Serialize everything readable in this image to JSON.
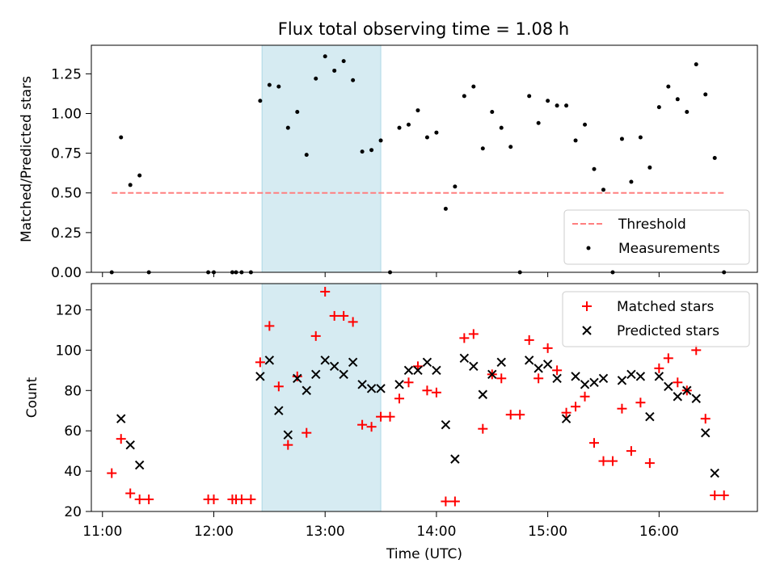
{
  "colors": {
    "threshold": "#ff7f7f",
    "measurement": "#000000",
    "matched": "#ff0000",
    "predicted": "#000000",
    "span": "#add8e6"
  },
  "chart_data": [
    {
      "type": "scatter",
      "title": "Flux total observing time = 1.08 h",
      "xlabel": "",
      "ylabel": "Matched/Predicted stars",
      "xlim": [
        "10:54",
        "16:53"
      ],
      "ylim": [
        0,
        1.43
      ],
      "yticks": [
        "0.00",
        "0.25",
        "0.50",
        "0.75",
        "1.00",
        "1.25"
      ],
      "grid": false,
      "legend_position": "lower-right",
      "highlight_span": [
        "12:26",
        "13:30"
      ],
      "threshold": {
        "name": "Threshold",
        "y": 0.5,
        "x": [
          "11:05",
          "16:35"
        ]
      },
      "series": [
        {
          "name": "Measurements",
          "x": [
            "11:05",
            "11:10",
            "11:15",
            "11:20",
            "11:25",
            "11:57",
            "12:00",
            "12:10",
            "12:12",
            "12:15",
            "12:20",
            "12:25",
            "12:30",
            "12:35",
            "12:40",
            "12:45",
            "12:50",
            "12:55",
            "13:00",
            "13:05",
            "13:10",
            "13:15",
            "13:20",
            "13:25",
            "13:30",
            "13:35",
            "13:40",
            "13:45",
            "13:50",
            "13:55",
            "14:00",
            "14:05",
            "14:10",
            "14:15",
            "14:20",
            "14:25",
            "14:30",
            "14:35",
            "14:40",
            "14:45",
            "14:50",
            "14:55",
            "15:00",
            "15:05",
            "15:10",
            "15:15",
            "15:20",
            "15:25",
            "15:30",
            "15:35",
            "15:40",
            "15:45",
            "15:50",
            "15:55",
            "16:00",
            "16:05",
            "16:10",
            "16:15",
            "16:20",
            "16:25",
            "16:30",
            "16:35"
          ],
          "y": [
            0.0,
            0.85,
            0.55,
            0.61,
            0.0,
            0.0,
            0.0,
            0.0,
            0.0,
            0.0,
            0.0,
            1.08,
            1.18,
            1.17,
            0.91,
            1.01,
            0.74,
            1.22,
            1.36,
            1.27,
            1.33,
            1.21,
            0.76,
            0.77,
            0.83,
            0.0,
            0.91,
            0.93,
            1.02,
            0.85,
            0.88,
            0.4,
            0.54,
            1.11,
            1.17,
            0.78,
            1.01,
            0.91,
            0.79,
            0.0,
            1.11,
            0.94,
            1.08,
            1.05,
            1.05,
            0.83,
            0.93,
            0.65,
            0.52,
            0.0,
            0.84,
            0.57,
            0.85,
            0.66,
            1.04,
            1.17,
            1.09,
            1.01,
            1.31,
            1.12,
            0.72,
            0.0
          ]
        }
      ]
    },
    {
      "type": "scatter",
      "title": "",
      "xlabel": "Time (UTC)",
      "ylabel": "Count",
      "xlim": [
        "10:54",
        "16:53"
      ],
      "ylim": [
        20,
        133
      ],
      "xticks": [
        "11:00",
        "12:00",
        "13:00",
        "14:00",
        "15:00",
        "16:00"
      ],
      "yticks": [
        "20",
        "40",
        "60",
        "80",
        "100",
        "120"
      ],
      "grid": false,
      "legend_position": "upper-right",
      "highlight_span": [
        "12:26",
        "13:30"
      ],
      "series": [
        {
          "name": "Matched stars",
          "marker": "plus",
          "x": [
            "11:05",
            "11:10",
            "11:15",
            "11:20",
            "11:25",
            "11:57",
            "12:00",
            "12:10",
            "12:12",
            "12:15",
            "12:20",
            "12:25",
            "12:30",
            "12:35",
            "12:40",
            "12:45",
            "12:50",
            "12:55",
            "13:00",
            "13:05",
            "13:10",
            "13:15",
            "13:20",
            "13:25",
            "13:30",
            "13:35",
            "13:40",
            "13:45",
            "13:50",
            "13:55",
            "14:00",
            "14:05",
            "14:10",
            "14:15",
            "14:20",
            "14:25",
            "14:30",
            "14:35",
            "14:40",
            "14:45",
            "14:50",
            "14:55",
            "15:00",
            "15:05",
            "15:10",
            "15:15",
            "15:20",
            "15:25",
            "15:30",
            "15:35",
            "15:40",
            "15:45",
            "15:50",
            "15:55",
            "16:00",
            "16:05",
            "16:10",
            "16:15",
            "16:20",
            "16:25",
            "16:30",
            "16:35"
          ],
          "y": [
            39,
            56,
            29,
            26,
            26,
            26,
            26,
            26,
            26,
            26,
            26,
            94,
            112,
            82,
            53,
            87,
            59,
            107,
            129,
            117,
            117,
            114,
            63,
            62,
            67,
            67,
            76,
            84,
            92,
            80,
            79,
            25,
            25,
            106,
            108,
            61,
            88,
            86,
            68,
            68,
            105,
            86,
            101,
            90,
            69,
            72,
            77,
            54,
            45,
            45,
            71,
            50,
            74,
            44,
            91,
            96,
            84,
            80,
            100,
            66,
            28,
            28
          ]
        },
        {
          "name": "Predicted stars",
          "marker": "x",
          "x": [
            "11:10",
            "11:15",
            "11:20",
            "12:25",
            "12:30",
            "12:35",
            "12:40",
            "12:45",
            "12:50",
            "12:55",
            "13:00",
            "13:05",
            "13:10",
            "13:15",
            "13:20",
            "13:25",
            "13:30",
            "13:40",
            "13:45",
            "13:50",
            "13:55",
            "14:00",
            "14:05",
            "14:10",
            "14:15",
            "14:20",
            "14:25",
            "14:30",
            "14:35",
            "14:50",
            "14:55",
            "15:00",
            "15:05",
            "15:10",
            "15:15",
            "15:20",
            "15:25",
            "15:30",
            "15:40",
            "15:45",
            "15:50",
            "15:55",
            "16:00",
            "16:05",
            "16:10",
            "16:15",
            "16:20",
            "16:25",
            "16:30"
          ],
          "y": [
            66,
            53,
            43,
            87,
            95,
            70,
            58,
            86,
            80,
            88,
            95,
            92,
            88,
            94,
            83,
            81,
            81,
            83,
            90,
            90,
            94,
            90,
            63,
            46,
            96,
            92,
            78,
            88,
            94,
            95,
            91,
            93,
            86,
            66,
            87,
            83,
            84,
            86,
            85,
            88,
            87,
            67,
            87,
            82,
            77,
            80,
            76,
            59,
            39
          ]
        }
      ]
    }
  ]
}
